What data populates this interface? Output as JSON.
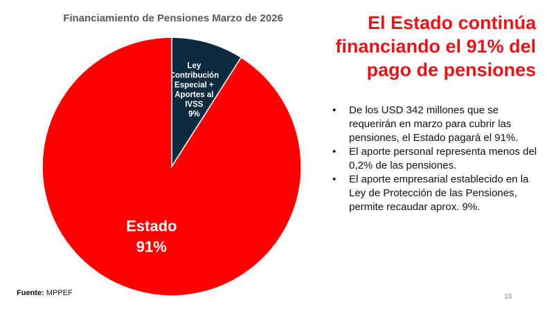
{
  "slide": {
    "headline": "El Estado continúa financiando el 91% del pago de pensiones",
    "bullets": [
      "De los USD 342 millones que se requerirán en marzo para cubrir las pensiones, el Estado pagará el 91%.",
      "El aporte personal representa menos del 0,2% de las pensiones.",
      "El aporte empresarial establecido en la Ley de Protección de las Pensiones, permite recaudar aprox. 9%."
    ],
    "source_label": "Fuente:",
    "source_value": "MPPEF",
    "page_number": "10"
  },
  "chart_data": {
    "type": "pie",
    "title": "Financiamiento de Pensiones Marzo de 2026",
    "slices": [
      {
        "label_lines": [
          "Ley",
          "Contribución",
          "Especial +",
          "Aportes al",
          "IVSS"
        ],
        "value": 9,
        "value_label": "9%",
        "color": "#0d2b3e"
      },
      {
        "label_lines": [
          "Estado"
        ],
        "value": 91,
        "value_label": "91%",
        "color": "#ff0000"
      }
    ],
    "start_angle": "12 o'clock, clockwise",
    "legend": "none"
  },
  "colors": {
    "headline": "#e8141c",
    "title": "#595959",
    "slice_border": "#ffffff"
  }
}
